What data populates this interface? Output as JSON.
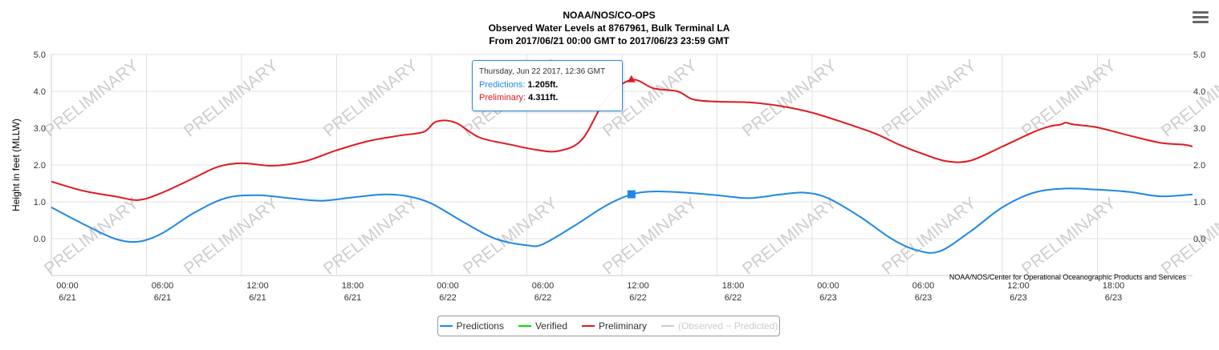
{
  "chart_data": {
    "type": "line",
    "title": [
      "NOAA/NOS/CO-OPS",
      "Observed Water Levels at 8767961, Bulk Terminal LA",
      "From 2017/06/21 00:00 GMT to 2017/06/23 23:59 GMT"
    ],
    "ylabel": "Height in feet (MLLW)",
    "ylim": [
      -1.0,
      5.0
    ],
    "y_ticks": [
      "5.0",
      "4.0",
      "3.0",
      "2.0",
      "1.0",
      "0.0"
    ],
    "x_ticks": [
      {
        "time": "00:00",
        "date": "6/21"
      },
      {
        "time": "06:00",
        "date": "6/21"
      },
      {
        "time": "12:00",
        "date": "6/21"
      },
      {
        "time": "18:00",
        "date": "6/21"
      },
      {
        "time": "00:00",
        "date": "6/22"
      },
      {
        "time": "06:00",
        "date": "6/22"
      },
      {
        "time": "12:00",
        "date": "6/22"
      },
      {
        "time": "18:00",
        "date": "6/22"
      },
      {
        "time": "00:00",
        "date": "6/23"
      },
      {
        "time": "06:00",
        "date": "6/23"
      },
      {
        "time": "12:00",
        "date": "6/23"
      },
      {
        "time": "18:00",
        "date": "6/23"
      }
    ],
    "x_unit": "hours since 2017/06/21 00:00 GMT",
    "xlim": [
      0,
      72
    ],
    "series": [
      {
        "name": "Predictions",
        "color": "#1e88e5",
        "x": [
          0,
          2,
          4,
          5.5,
          7,
          9,
          11,
          13,
          15,
          17,
          19,
          21,
          22.5,
          24,
          26,
          28,
          30,
          31,
          33,
          35,
          36.6,
          38,
          40,
          42,
          44,
          46,
          47.5,
          49,
          51,
          53,
          54.5,
          56,
          58,
          60,
          62,
          64,
          66,
          68,
          70,
          72
        ],
        "y": [
          0.85,
          0.4,
          0.0,
          -0.08,
          0.15,
          0.7,
          1.1,
          1.18,
          1.1,
          1.03,
          1.12,
          1.2,
          1.15,
          0.95,
          0.45,
          0.0,
          -0.18,
          -0.15,
          0.35,
          0.9,
          1.2,
          1.28,
          1.25,
          1.18,
          1.1,
          1.2,
          1.25,
          1.1,
          0.6,
          0.0,
          -0.3,
          -0.35,
          0.2,
          0.85,
          1.25,
          1.36,
          1.33,
          1.27,
          1.15,
          1.2
        ]
      },
      {
        "name": "Verified",
        "color": "#00e000",
        "x": [],
        "y": []
      },
      {
        "name": "Preliminary",
        "color": "#e0191f",
        "x": [
          0,
          2,
          4,
          5.5,
          7,
          9,
          10.5,
          12,
          14,
          16,
          18,
          20,
          22,
          23.5,
          24.3,
          25.5,
          27,
          29,
          30.5,
          32,
          33.5,
          35,
          36.6,
          38,
          39.5,
          40.5,
          42,
          44,
          46,
          48,
          50,
          52,
          53.5,
          55,
          56.5,
          58,
          60,
          62,
          63,
          63.7,
          64,
          64.5,
          66,
          68,
          70,
          71.5,
          72
        ],
        "y": [
          1.55,
          1.3,
          1.15,
          1.05,
          1.25,
          1.65,
          1.95,
          2.05,
          1.98,
          2.1,
          2.4,
          2.65,
          2.8,
          2.9,
          3.18,
          3.15,
          2.75,
          2.55,
          2.42,
          2.38,
          2.7,
          3.8,
          4.31,
          4.08,
          4.0,
          3.78,
          3.72,
          3.7,
          3.6,
          3.42,
          3.15,
          2.85,
          2.55,
          2.3,
          2.1,
          2.12,
          2.5,
          2.9,
          3.05,
          3.1,
          3.15,
          3.1,
          3.02,
          2.8,
          2.6,
          2.55,
          2.5
        ]
      },
      {
        "name": "(Observed - Predicted)",
        "color": "#cccccc",
        "hidden": true,
        "x": [],
        "y": []
      }
    ],
    "watermark": "PRELIMINARY",
    "credits": "NOAA/NOS/Center for Operational Oceanographic Products and Services",
    "grid": true,
    "legend_placement": "bottom-center",
    "highlight": {
      "x": 36.6,
      "prediction": 1.205,
      "preliminary": 4.311
    }
  },
  "tooltip": {
    "date": "Thursday, Jun 22 2017, 12:36 GMT",
    "pred_label": "Predictions:",
    "pred_value": "1.205ft.",
    "prelim_label": "Preliminary:",
    "prelim_value": "4.311ft."
  },
  "legend": {
    "items": [
      {
        "label": "Predictions",
        "color": "#1e88e5"
      },
      {
        "label": "Verified",
        "color": "#00e000"
      },
      {
        "label": "Preliminary",
        "color": "#e0191f"
      },
      {
        "label": "(Observed − Predicted)",
        "color": "#cccccc",
        "hidden": true
      }
    ]
  },
  "menu": {
    "icon": "hamburger-menu-icon"
  }
}
